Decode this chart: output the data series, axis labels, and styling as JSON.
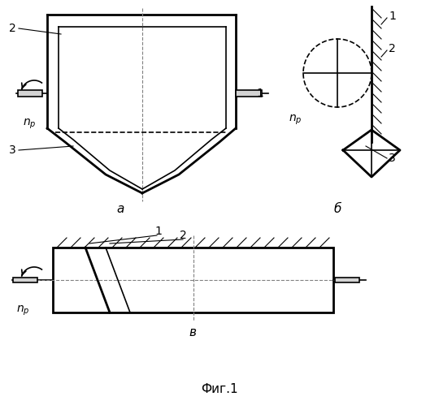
{
  "bg_color": "#ffffff",
  "line_color": "#000000",
  "fig_width": 5.4,
  "fig_height": 4.99,
  "title": "Фиг.1",
  "label_a": "а",
  "label_b": "б",
  "label_v": "в"
}
